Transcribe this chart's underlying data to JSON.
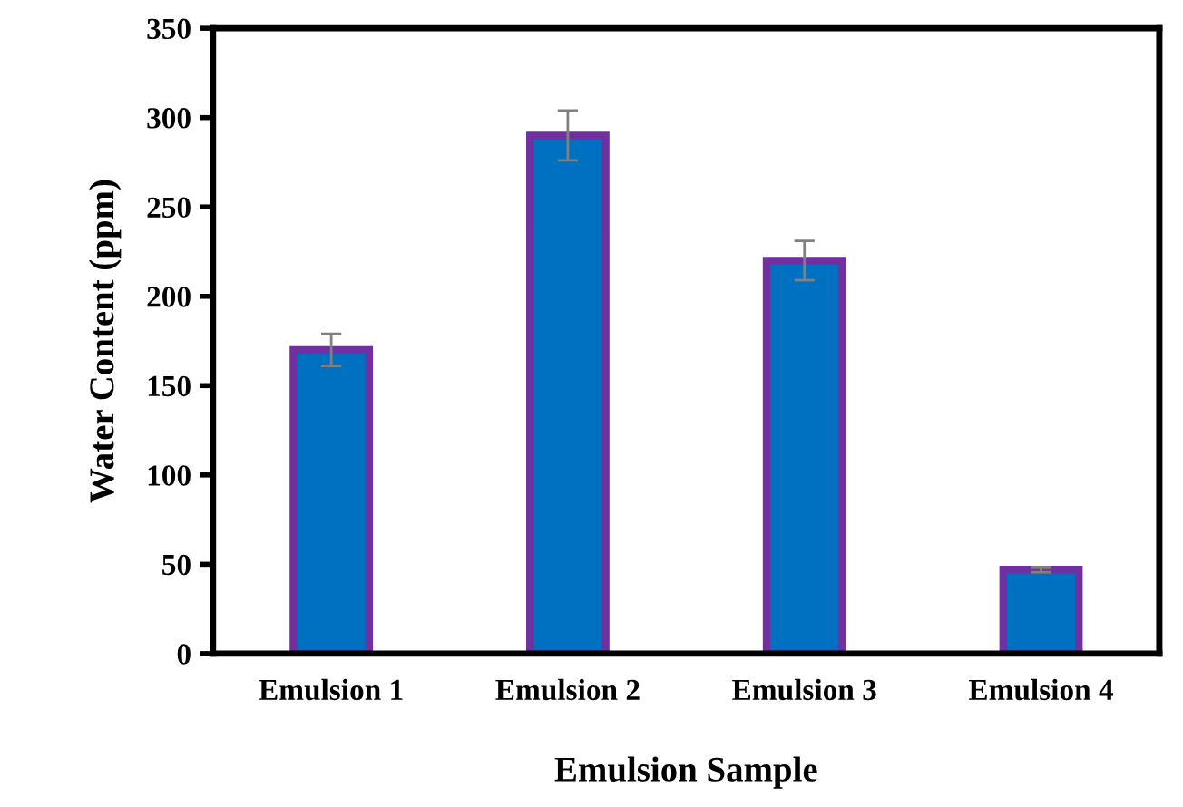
{
  "chart_data": {
    "type": "bar",
    "xlabel": "Emulsion Sample",
    "ylabel": "Water Content (ppm)",
    "categories": [
      "Emulsion 1",
      "Emulsion 2",
      "Emulsion 3",
      "Emulsion 4"
    ],
    "series": [
      {
        "color": "#0070c0",
        "values": [
          170,
          290,
          220,
          47
        ],
        "errors": [
          9,
          14,
          11,
          1.5
        ]
      }
    ],
    "ylim": [
      0,
      350
    ],
    "yticks": [
      0,
      50,
      100,
      150,
      200,
      250,
      300,
      350
    ],
    "grid": false,
    "legend": false
  }
}
